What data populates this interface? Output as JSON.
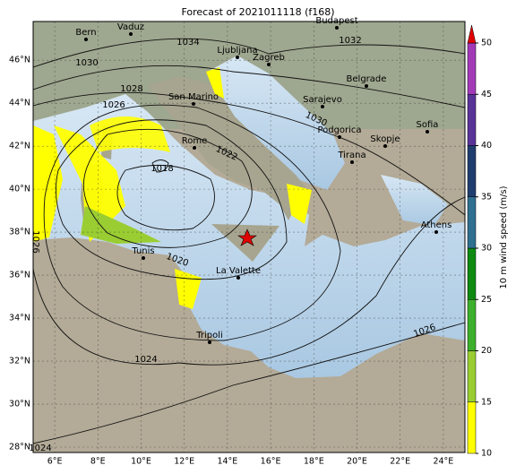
{
  "title": "Forecast of 2021011118 (f168)",
  "map": {
    "lonlim": [
      5,
      25
    ],
    "latlim": [
      27.75,
      47.8
    ],
    "lonticks": [
      {
        "value": 6,
        "label": "6°E"
      },
      {
        "value": 8,
        "label": "8°E"
      },
      {
        "value": 10,
        "label": "10°E"
      },
      {
        "value": 12,
        "label": "12°E"
      },
      {
        "value": 14,
        "label": "14°E"
      },
      {
        "value": 16,
        "label": "16°E"
      },
      {
        "value": 18,
        "label": "18°E"
      },
      {
        "value": 20,
        "label": "20°E"
      },
      {
        "value": 22,
        "label": "22°E"
      },
      {
        "value": 24,
        "label": "24°E"
      }
    ],
    "latticks": [
      {
        "value": 28,
        "label": "28°N"
      },
      {
        "value": 30,
        "label": "30°N"
      },
      {
        "value": 32,
        "label": "32°N"
      },
      {
        "value": 34,
        "label": "34°N"
      },
      {
        "value": 36,
        "label": "36°N"
      },
      {
        "value": 38,
        "label": "38°N"
      },
      {
        "value": 40,
        "label": "40°N"
      },
      {
        "value": 42,
        "label": "42°N"
      },
      {
        "value": 44,
        "label": "44°N"
      },
      {
        "value": 46,
        "label": "46°N"
      }
    ],
    "cities": [
      "Bern",
      "Vaduz",
      "Budapest",
      "Ljubljana",
      "Zagreb",
      "Belgrade",
      "San Marino",
      "Sarajevo",
      "Rome",
      "Podgorica",
      "Skopje",
      "Sofia",
      "Tirana",
      "Athens",
      "Tunis",
      "La Valette",
      "Tripoli"
    ],
    "isobar_labels": [
      "1034",
      "1032",
      "1030",
      "1028",
      "1026",
      "1030",
      "1022",
      "1018",
      "1020",
      "1024",
      "1026",
      "1026",
      "1024"
    ]
  },
  "colorbar": {
    "label": "10 m wind speed (m/s)",
    "lim": [
      10,
      50
    ],
    "ticks": [
      10,
      15,
      20,
      25,
      30,
      35,
      40,
      45,
      50
    ],
    "colors": [
      "#ffff00",
      "#9acd32",
      "#3cb02c",
      "#0e8a12",
      "#2f6f8f",
      "#1f3d6e",
      "#5a3399",
      "#a23ab8"
    ],
    "extend_color": "#e00000"
  }
}
